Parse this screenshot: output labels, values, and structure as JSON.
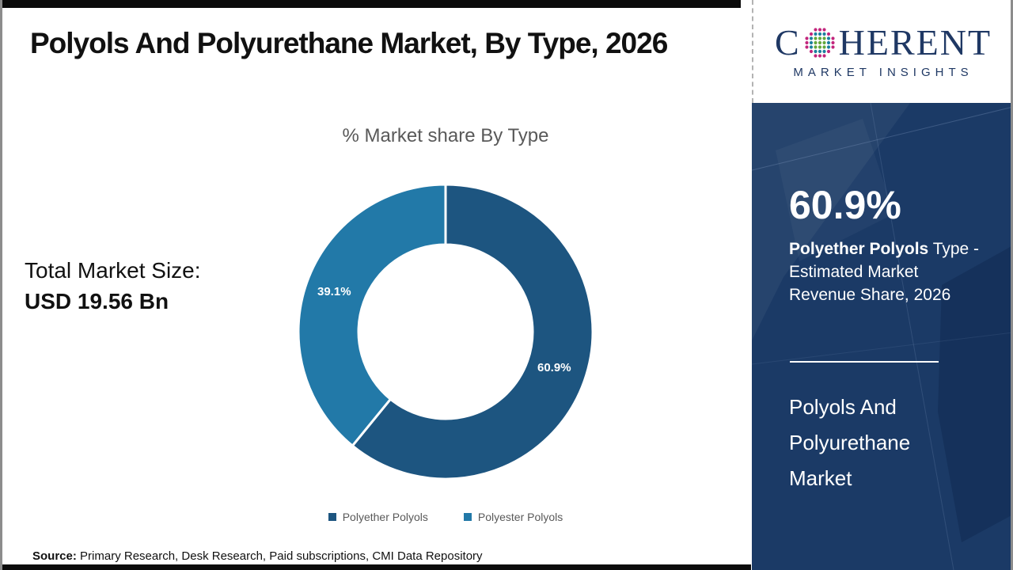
{
  "header": {
    "title": "Polyols And Polyurethane Market, By Type, 2026",
    "logo": {
      "brand_first_letter": "C",
      "brand_rest": "HERENT",
      "subtitle": "MARKET INSIGHTS"
    }
  },
  "left_panel": {
    "total_label": "Total Market Size:",
    "total_value": "USD 19.56 Bn"
  },
  "chart_data": {
    "type": "pie",
    "donut": true,
    "title": "% Market share By Type",
    "categories": [
      "Polyether Polyols",
      "Polyester Polyols"
    ],
    "values": [
      60.9,
      39.1
    ],
    "unit": "%",
    "data_labels": [
      "60.9%",
      "39.1%"
    ],
    "colors": [
      "#1d5580",
      "#2279a8"
    ],
    "legend_position": "bottom",
    "start_angle_deg": -90,
    "direction": "clockwise"
  },
  "sidebar": {
    "highlight_value": "60.9%",
    "highlight_bold": "Polyether Polyols",
    "highlight_rest": " Type - Estimated Market Revenue Share, 2026",
    "market_name": "Polyols And Polyurethane Market"
  },
  "footer": {
    "source_label": "Source:",
    "source_text": " Primary Research, Desk Research, Paid subscriptions, CMI Data Repository"
  },
  "colors": {
    "brand_navy": "#1f3864",
    "sidebar_background": "#1b3a66",
    "slice_dark": "#1d5580",
    "slice_light": "#2279a8",
    "muted_text": "#595959",
    "bar_black": "#0b0b0b"
  }
}
